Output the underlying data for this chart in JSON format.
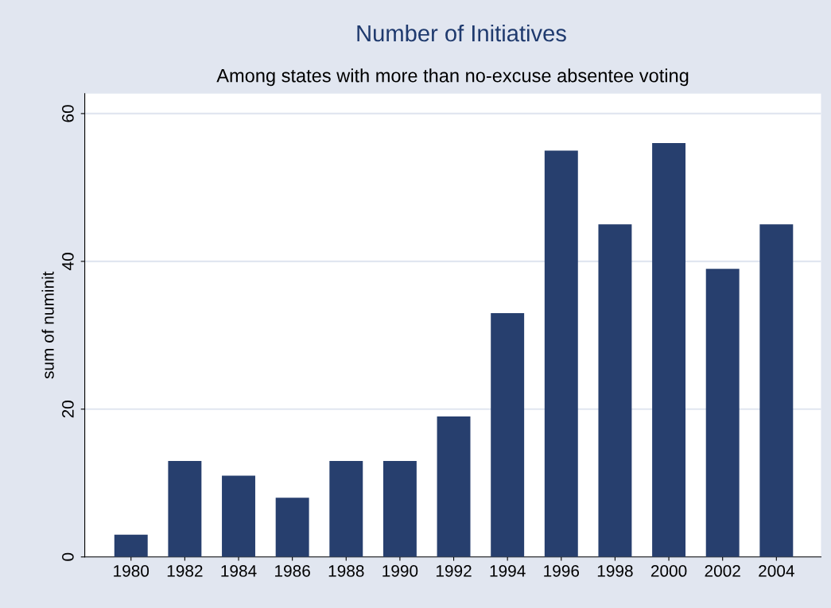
{
  "chart_data": {
    "type": "bar",
    "title": "Number of Initiatives",
    "subtitle": "Among states with more than no-excuse absentee voting",
    "ylabel": "sum of numinit",
    "categories": [
      "1980",
      "1982",
      "1984",
      "1986",
      "1988",
      "1990",
      "1992",
      "1994",
      "1996",
      "1998",
      "2000",
      "2002",
      "2004"
    ],
    "values": [
      3,
      13,
      11,
      8,
      13,
      13,
      19,
      33,
      55,
      45,
      56,
      39,
      45
    ],
    "color": "#273f6e",
    "ylim": [
      0,
      62.7
    ],
    "yticks": [
      0,
      20,
      40,
      60
    ],
    "grid": "y",
    "legend": false
  }
}
